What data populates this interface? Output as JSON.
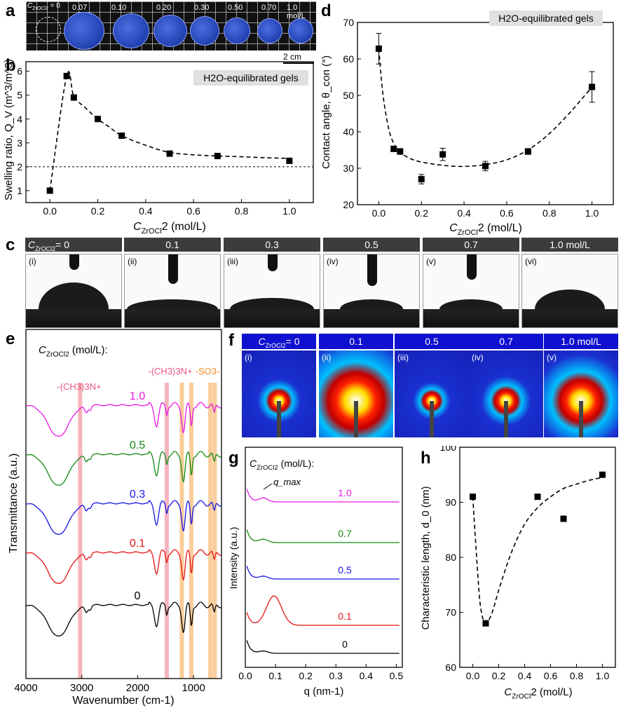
{
  "panels": {
    "a": "a",
    "b": "b",
    "c": "c",
    "d": "d",
    "e": "e",
    "f": "f",
    "g": "g",
    "h": "h"
  },
  "panel_a": {
    "conc_prefix": "C",
    "conc_sub": "ZrOCl2",
    "conc_eq": "= 0",
    "labels": [
      "0.07",
      "0.10",
      "0.20",
      "0.30",
      "0.50",
      "0.70",
      "1.0 mol/L"
    ],
    "scale_bar": "2 cm"
  },
  "panel_c": {
    "headers": [
      "C_ZrOCl2= 0",
      "0.1",
      "0.3",
      "0.5",
      "0.7",
      "1.0 mol/L"
    ],
    "first_prefix": "C",
    "first_sub": "ZrOCl2",
    "first_eq": "=  0",
    "roman": [
      "(i)",
      "(ii)",
      "(iii)",
      "(iv)",
      "(v)",
      "(vi)"
    ]
  },
  "panel_f": {
    "first_prefix": "C",
    "first_sub": "ZrOCl2",
    "first_eq": "= 0",
    "headers": [
      "0.1",
      "0.5",
      "0.7",
      "1.0 mol/L"
    ],
    "roman": [
      "(i)",
      "(ii)",
      "(iii)",
      "(iv)",
      "(v)"
    ]
  },
  "colors": {
    "magenta": "#e619e6",
    "green": "#118a11",
    "blue": "#1414e6",
    "red": "#e61414",
    "black": "#000000",
    "pink_band": "#f4a7b0",
    "orange_band": "#f9c48a"
  },
  "chart_data": [
    {
      "id": "b",
      "type": "scatter",
      "annotation": "H2O-equilibrated gels",
      "xlabel": "C_ZrOCl2 (mol/L)",
      "ylabel": "Swelling ratio, Q_V (m^3/m^3)",
      "xlim": [
        -0.1,
        1.1
      ],
      "ylim": [
        0.5,
        6.4
      ],
      "xticks": [
        "0.0",
        "0.2",
        "0.4",
        "0.6",
        "0.8",
        "1.0"
      ],
      "yticks": [
        "1",
        "2",
        "3",
        "4",
        "5",
        "6"
      ],
      "x": [
        0,
        0.07,
        0.1,
        0.2,
        0.3,
        0.5,
        0.7,
        1.0
      ],
      "y": [
        1.0,
        5.8,
        4.9,
        4.0,
        3.3,
        2.55,
        2.45,
        2.25
      ],
      "reference_line_y": 2.0,
      "fit_x": [
        0,
        0.07,
        0.1,
        0.15,
        0.2,
        0.25,
        0.3,
        0.4,
        0.5,
        0.6,
        0.7,
        0.8,
        0.9,
        1.0
      ],
      "fit_y": [
        1.0,
        5.8,
        4.95,
        4.45,
        4.0,
        3.65,
        3.3,
        2.9,
        2.6,
        2.5,
        2.45,
        2.42,
        2.38,
        2.35
      ]
    },
    {
      "id": "d",
      "type": "scatter",
      "annotation": "H2O-equilibrated gels",
      "xlabel": "C_ZrOCl2 (mol/L)",
      "ylabel": "Contact angle, θ_con (°)",
      "xlim": [
        -0.1,
        1.1
      ],
      "ylim": [
        20,
        70
      ],
      "xticks": [
        "0.0",
        "0.2",
        "0.4",
        "0.6",
        "0.8",
        "1.0"
      ],
      "yticks": [
        "20",
        "30",
        "40",
        "50",
        "60",
        "70"
      ],
      "x": [
        0,
        0.07,
        0.1,
        0.2,
        0.3,
        0.5,
        0.7,
        1.0
      ],
      "y": [
        62.8,
        35.3,
        34.6,
        27.0,
        33.8,
        30.6,
        34.6,
        52.3
      ],
      "yerr": [
        4.2,
        0.5,
        0.8,
        1.3,
        1.7,
        1.3,
        0.8,
        4.2
      ],
      "fit_x": [
        0,
        0.02,
        0.05,
        0.08,
        0.1,
        0.15,
        0.2,
        0.3,
        0.4,
        0.5,
        0.6,
        0.7,
        0.8,
        0.9,
        1.0
      ],
      "fit_y": [
        62.8,
        50,
        40,
        35.8,
        34.3,
        32.6,
        31.7,
        30.8,
        30.5,
        31.0,
        32.3,
        35.0,
        39.5,
        45.5,
        52.3
      ]
    },
    {
      "id": "e",
      "type": "line",
      "header_prefix": "C",
      "header_sub": "ZrOCl2",
      "header_unit": "(mol/L):",
      "xlabel": "Wavenumber (cm-1)",
      "ylabel": "Transmittance (a.u.)",
      "xlim": [
        4000,
        500
      ],
      "xticks": [
        "4000",
        "3000",
        "2000",
        "1000"
      ],
      "band_labels": [
        "-(CH3)3N+",
        "-(CH3)3N+",
        "-SO3-"
      ],
      "series": [
        {
          "name": "1.0",
          "color": "#e619e6",
          "offset": 0
        },
        {
          "name": "0.5",
          "color": "#118a11",
          "offset": 1
        },
        {
          "name": "0.3",
          "color": "#1414e6",
          "offset": 2
        },
        {
          "name": "0.1",
          "color": "#e61414",
          "offset": 3
        },
        {
          "name": "0",
          "color": "#000000",
          "offset": 4
        }
      ],
      "bands_pink": [
        3030,
        1480
      ],
      "bands_orange": [
        1210,
        1040,
        700,
        620
      ]
    },
    {
      "id": "g",
      "type": "line",
      "header_prefix": "C",
      "header_sub": "ZrOCl2",
      "header_unit": "(mol/L):",
      "xlabel": "q (nm-1)",
      "ylabel": "Intensity (a.u.)",
      "xlim": [
        0,
        0.52
      ],
      "xticks": [
        "0.0",
        "0.1",
        "0.2",
        "0.3",
        "0.4",
        "0.5"
      ],
      "annotation": "q_max",
      "series": [
        {
          "name": "1.0",
          "color": "#e619e6"
        },
        {
          "name": "0.7",
          "color": "#118a11"
        },
        {
          "name": "0.5",
          "color": "#1414e6"
        },
        {
          "name": "0.1",
          "color": "#e61414"
        },
        {
          "name": "0",
          "color": "#000000"
        }
      ]
    },
    {
      "id": "h",
      "type": "scatter",
      "xlabel": "C_ZrOCl2 (mol/L)",
      "ylabel": "Characteristic length, d_0 (nm)",
      "xlim": [
        -0.1,
        1.1
      ],
      "ylim": [
        60,
        100
      ],
      "xticks": [
        "0.0",
        "0.2",
        "0.4",
        "0.6",
        "0.8",
        "1.0"
      ],
      "yticks": [
        "60",
        "70",
        "80",
        "90",
        "100"
      ],
      "x": [
        0,
        0.1,
        0.5,
        0.7,
        1.0
      ],
      "y": [
        91,
        68,
        91,
        87,
        95
      ],
      "fit_x": [
        0,
        0.03,
        0.06,
        0.1,
        0.15,
        0.2,
        0.3,
        0.4,
        0.5,
        0.6,
        0.7,
        0.8,
        0.9,
        1.0
      ],
      "fit_y": [
        91,
        80,
        71,
        68,
        70,
        74,
        81,
        86,
        89,
        91,
        92.5,
        93.3,
        94,
        94.5
      ]
    }
  ]
}
